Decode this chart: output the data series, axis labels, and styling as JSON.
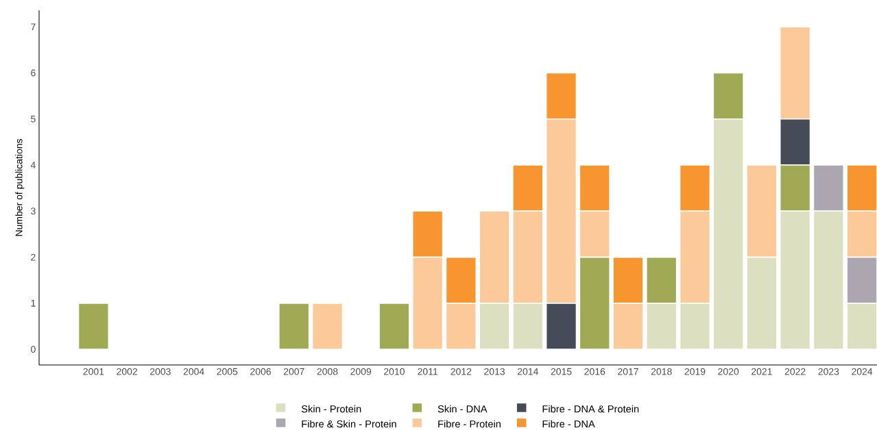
{
  "chart_data": {
    "type": "bar",
    "stacked": true,
    "ylabel": "Number of publications",
    "categories": [
      "2001",
      "2002",
      "2003",
      "2004",
      "2005",
      "2006",
      "2007",
      "2008",
      "2009",
      "2010",
      "2011",
      "2012",
      "2013",
      "2014",
      "2015",
      "2016",
      "2017",
      "2018",
      "2019",
      "2020",
      "2021",
      "2022",
      "2023",
      "2024"
    ],
    "series": [
      {
        "name": "Skin - Protein",
        "color": "#dcdfc0",
        "values": [
          0,
          0,
          0,
          0,
          0,
          0,
          0,
          0,
          0,
          0,
          0,
          0,
          1,
          1,
          0,
          0,
          0,
          1,
          1,
          5,
          2,
          3,
          3,
          1
        ]
      },
      {
        "name": "Skin - DNA",
        "color": "#a0aa55",
        "values": [
          1,
          0,
          0,
          0,
          0,
          0,
          1,
          0,
          0,
          1,
          0,
          0,
          0,
          0,
          0,
          2,
          0,
          1,
          0,
          1,
          0,
          1,
          0,
          0
        ]
      },
      {
        "name": "Fibre - DNA & Protein",
        "color": "#464c57",
        "values": [
          0,
          0,
          0,
          0,
          0,
          0,
          0,
          0,
          0,
          0,
          0,
          0,
          0,
          0,
          1,
          0,
          0,
          0,
          0,
          0,
          0,
          1,
          0,
          0
        ]
      },
      {
        "name": "Fibre & Skin - Protein",
        "color": "#aca6b0",
        "values": [
          0,
          0,
          0,
          0,
          0,
          0,
          0,
          0,
          0,
          0,
          0,
          0,
          0,
          0,
          0,
          0,
          0,
          0,
          0,
          0,
          0,
          0,
          1,
          1
        ]
      },
      {
        "name": "Fibre - Protein",
        "color": "#fcc999",
        "values": [
          0,
          0,
          0,
          0,
          0,
          0,
          0,
          1,
          0,
          0,
          2,
          1,
          2,
          2,
          4,
          1,
          1,
          0,
          2,
          0,
          2,
          2,
          0,
          1
        ]
      },
      {
        "name": "Fibre - DNA",
        "color": "#f7952f",
        "values": [
          0,
          0,
          0,
          0,
          0,
          0,
          0,
          0,
          0,
          0,
          1,
          1,
          0,
          1,
          1,
          1,
          1,
          0,
          1,
          0,
          0,
          0,
          0,
          1
        ]
      }
    ],
    "ylim": [
      -0.34,
      7.36
    ],
    "yticks": [
      0,
      1,
      2,
      3,
      4,
      5,
      6,
      7
    ],
    "grid": false,
    "legend": "bottom"
  }
}
